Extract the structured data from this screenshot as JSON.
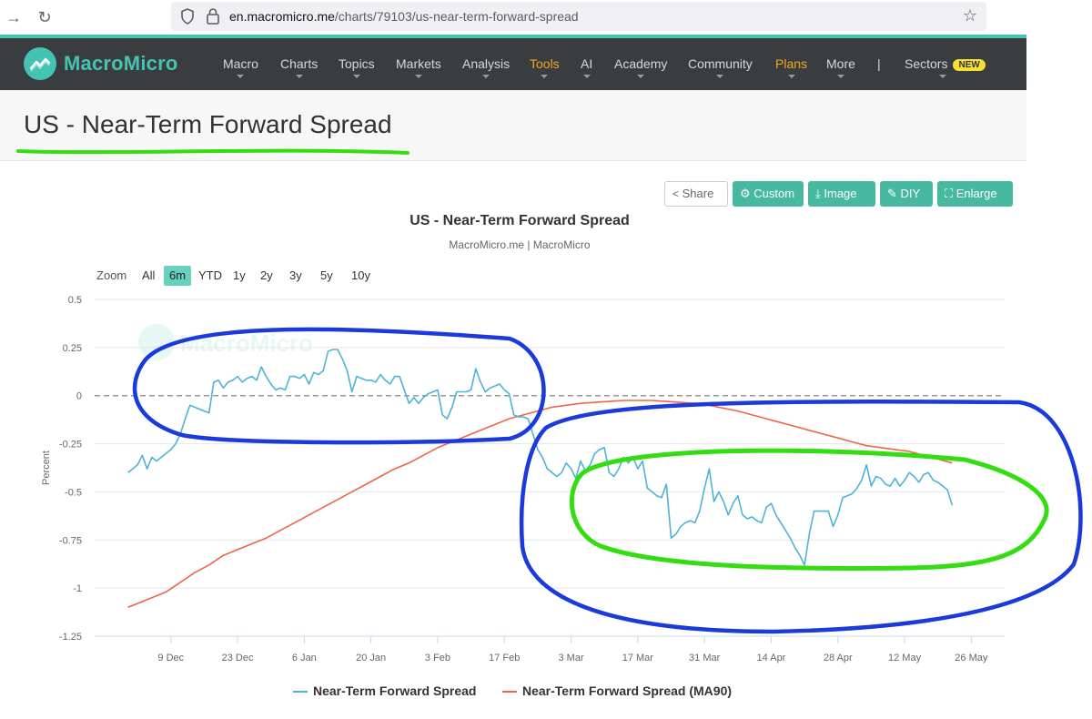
{
  "browser": {
    "url_host": "en.macromicro.me",
    "url_path": "/charts/79103/us-near-term-forward-spread"
  },
  "site": {
    "logo_text": "MacroMicro",
    "menu": [
      {
        "label": "Macro",
        "caret": true,
        "highlight": false
      },
      {
        "label": "Charts",
        "caret": true,
        "highlight": false
      },
      {
        "label": "Topics",
        "caret": true,
        "highlight": false
      },
      {
        "label": "Markets",
        "caret": true,
        "highlight": false
      },
      {
        "label": "Analysis",
        "caret": true,
        "highlight": false
      },
      {
        "label": "Tools",
        "caret": true,
        "highlight": true
      },
      {
        "label": "AI",
        "caret": true,
        "highlight": false
      },
      {
        "label": "Academy",
        "caret": true,
        "highlight": false
      },
      {
        "label": "Community",
        "caret": true,
        "highlight": false
      },
      {
        "label": "Plans",
        "caret": true,
        "highlight": true
      },
      {
        "label": "More",
        "caret": true,
        "highlight": false
      }
    ],
    "separator": "|",
    "sectors_label": "Sectors",
    "new_badge": "NEW",
    "accent_color": "#45c3b2",
    "highlight_color": "#f5a623"
  },
  "page": {
    "title": "US - Near-Term Forward Spread"
  },
  "toolbar": {
    "share": "Share",
    "custom": "Custom",
    "image": "Image",
    "diy": "DIY",
    "enlarge": "Enlarge"
  },
  "zoom": {
    "label": "Zoom",
    "options": [
      "All",
      "6m",
      "YTD",
      "1y",
      "2y",
      "3y",
      "5y",
      "10y"
    ],
    "active": "6m"
  },
  "chart_data": {
    "type": "line",
    "title": "US - Near-Term Forward Spread",
    "subtitle": "MacroMicro.me | MacroMicro",
    "watermark": "MacroMicro",
    "ylabel": "Percent",
    "ylim": [
      -1.25,
      0.5
    ],
    "yticks": [
      "0.5",
      "0.25",
      "0",
      "-0.25",
      "-0.5",
      "-0.75",
      "-1",
      "-1.25"
    ],
    "yticks_values": [
      0.5,
      0.25,
      0,
      -0.25,
      -0.5,
      -0.75,
      -1,
      -1.25
    ],
    "xlim": [
      0,
      180
    ],
    "xticks": [
      {
        "label": "9 Dec",
        "x": 7
      },
      {
        "label": "23 Dec",
        "x": 21
      },
      {
        "label": "6 Jan",
        "x": 35
      },
      {
        "label": "20 Jan",
        "x": 49
      },
      {
        "label": "3 Feb",
        "x": 63
      },
      {
        "label": "17 Feb",
        "x": 77
      },
      {
        "label": "3 Mar",
        "x": 91
      },
      {
        "label": "17 Mar",
        "x": 105
      },
      {
        "label": "31 Mar",
        "x": 119
      },
      {
        "label": "14 Apr",
        "x": 133
      },
      {
        "label": "28 Apr",
        "x": 147
      },
      {
        "label": "12 May",
        "x": 161
      },
      {
        "label": "26 May",
        "x": 175
      }
    ],
    "zero_line": true,
    "legend_position": "bottom",
    "series": [
      {
        "name": "Near-Term Forward Spread",
        "color": "#4db4d7",
        "points": [
          [
            -2,
            -0.4
          ],
          [
            -1,
            -0.38
          ],
          [
            0,
            -0.36
          ],
          [
            1,
            -0.31
          ],
          [
            2,
            -0.38
          ],
          [
            3,
            -0.32
          ],
          [
            4,
            -0.34
          ],
          [
            5,
            -0.32
          ],
          [
            6,
            -0.3
          ],
          [
            7,
            -0.28
          ],
          [
            8,
            -0.25
          ],
          [
            9,
            -0.2
          ],
          [
            10,
            -0.12
          ],
          [
            11,
            -0.05
          ],
          [
            12,
            -0.06
          ],
          [
            13,
            -0.07
          ],
          [
            14,
            -0.08
          ],
          [
            15,
            -0.09
          ],
          [
            16,
            0.07
          ],
          [
            17,
            0.08
          ],
          [
            18,
            0.04
          ],
          [
            19,
            0.07
          ],
          [
            20,
            0.08
          ],
          [
            21,
            0.1
          ],
          [
            22,
            0.07
          ],
          [
            23,
            0.09
          ],
          [
            24,
            0.1
          ],
          [
            25,
            0.08
          ],
          [
            26,
            0.15
          ],
          [
            27,
            0.1
          ],
          [
            28,
            0.06
          ],
          [
            29,
            0.03
          ],
          [
            30,
            0.04
          ],
          [
            31,
            0.03
          ],
          [
            32,
            0.1
          ],
          [
            33,
            0.1
          ],
          [
            34,
            0.09
          ],
          [
            35,
            0.11
          ],
          [
            36,
            0.06
          ],
          [
            37,
            0.12
          ],
          [
            38,
            0.11
          ],
          [
            39,
            0.13
          ],
          [
            40,
            0.23
          ],
          [
            41,
            0.24
          ],
          [
            42,
            0.24
          ],
          [
            43,
            0.19
          ],
          [
            44,
            0.13
          ],
          [
            45,
            0.02
          ],
          [
            46,
            0.1
          ],
          [
            47,
            0.09
          ],
          [
            48,
            0.08
          ],
          [
            49,
            0.08
          ],
          [
            50,
            0.07
          ],
          [
            51,
            0.11
          ],
          [
            52,
            0.08
          ],
          [
            53,
            0.06
          ],
          [
            54,
            0.1
          ],
          [
            55,
            0.1
          ],
          [
            56,
            0.03
          ],
          [
            57,
            -0.04
          ],
          [
            58,
            -0.01
          ],
          [
            59,
            -0.04
          ],
          [
            60,
            -0.01
          ],
          [
            61,
            0.01
          ],
          [
            62,
            0.02
          ],
          [
            63,
            0.03
          ],
          [
            64,
            -0.1
          ],
          [
            65,
            -0.12
          ],
          [
            66,
            -0.06
          ],
          [
            67,
            0.02
          ],
          [
            68,
            0.02
          ],
          [
            69,
            0.02
          ],
          [
            70,
            0.03
          ],
          [
            71,
            0.14
          ],
          [
            72,
            0.07
          ],
          [
            73,
            0.02
          ],
          [
            74,
            0.04
          ],
          [
            75,
            0.05
          ],
          [
            76,
            0.06
          ],
          [
            77,
            0.03
          ],
          [
            78,
            0.01
          ],
          [
            79,
            -0.1
          ],
          [
            80,
            -0.11
          ],
          [
            81,
            -0.11
          ],
          [
            82,
            -0.12
          ],
          [
            83,
            -0.2
          ],
          [
            84,
            -0.28
          ],
          [
            85,
            -0.32
          ],
          [
            86,
            -0.38
          ],
          [
            87,
            -0.4
          ],
          [
            88,
            -0.42
          ],
          [
            89,
            -0.4
          ],
          [
            90,
            -0.35
          ],
          [
            91,
            -0.38
          ],
          [
            92,
            -0.43
          ],
          [
            93,
            -0.34
          ],
          [
            94,
            -0.39
          ],
          [
            95,
            -0.36
          ],
          [
            96,
            -0.3
          ],
          [
            97,
            -0.28
          ],
          [
            98,
            -0.27
          ],
          [
            99,
            -0.4
          ],
          [
            100,
            -0.42
          ],
          [
            101,
            -0.38
          ],
          [
            102,
            -0.32
          ],
          [
            103,
            -0.35
          ],
          [
            104,
            -0.32
          ],
          [
            105,
            -0.38
          ],
          [
            106,
            -0.34
          ],
          [
            107,
            -0.48
          ],
          [
            108,
            -0.5
          ],
          [
            109,
            -0.52
          ],
          [
            110,
            -0.53
          ],
          [
            111,
            -0.46
          ],
          [
            112,
            -0.74
          ],
          [
            113,
            -0.72
          ],
          [
            114,
            -0.68
          ],
          [
            115,
            -0.66
          ],
          [
            116,
            -0.65
          ],
          [
            117,
            -0.66
          ],
          [
            118,
            -0.6
          ],
          [
            119,
            -0.48
          ],
          [
            120,
            -0.38
          ],
          [
            121,
            -0.55
          ],
          [
            122,
            -0.5
          ],
          [
            123,
            -0.55
          ],
          [
            124,
            -0.62
          ],
          [
            125,
            -0.56
          ],
          [
            126,
            -0.52
          ],
          [
            127,
            -0.62
          ],
          [
            128,
            -0.64
          ],
          [
            129,
            -0.63
          ],
          [
            130,
            -0.65
          ],
          [
            131,
            -0.66
          ],
          [
            132,
            -0.58
          ],
          [
            133,
            -0.56
          ],
          [
            134,
            -0.62
          ],
          [
            135,
            -0.66
          ],
          [
            136,
            -0.7
          ],
          [
            137,
            -0.74
          ],
          [
            138,
            -0.79
          ],
          [
            139,
            -0.83
          ],
          [
            140,
            -0.88
          ],
          [
            141,
            -0.72
          ],
          [
            142,
            -0.6
          ],
          [
            143,
            -0.6
          ],
          [
            144,
            -0.6
          ],
          [
            145,
            -0.6
          ],
          [
            146,
            -0.68
          ],
          [
            147,
            -0.62
          ],
          [
            148,
            -0.53
          ],
          [
            149,
            -0.52
          ],
          [
            150,
            -0.51
          ],
          [
            151,
            -0.48
          ],
          [
            152,
            -0.44
          ],
          [
            153,
            -0.36
          ],
          [
            154,
            -0.47
          ],
          [
            155,
            -0.42
          ],
          [
            156,
            -0.43
          ],
          [
            157,
            -0.46
          ],
          [
            158,
            -0.47
          ],
          [
            159,
            -0.43
          ],
          [
            160,
            -0.47
          ],
          [
            161,
            -0.44
          ],
          [
            162,
            -0.4
          ],
          [
            163,
            -0.42
          ],
          [
            164,
            -0.45
          ],
          [
            165,
            -0.41
          ],
          [
            166,
            -0.4
          ],
          [
            167,
            -0.44
          ],
          [
            168,
            -0.45
          ],
          [
            169,
            -0.47
          ],
          [
            170,
            -0.49
          ],
          [
            171,
            -0.57
          ]
        ]
      },
      {
        "name": "Near-Term Forward Spread (MA90)",
        "color": "#ef6549",
        "points": [
          [
            -2,
            -1.1
          ],
          [
            0,
            -1.08
          ],
          [
            3,
            -1.05
          ],
          [
            6,
            -1.02
          ],
          [
            9,
            -0.97
          ],
          [
            12,
            -0.92
          ],
          [
            15,
            -0.88
          ],
          [
            18,
            -0.83
          ],
          [
            21,
            -0.8
          ],
          [
            24,
            -0.77
          ],
          [
            27,
            -0.74
          ],
          [
            30,
            -0.7
          ],
          [
            33,
            -0.66
          ],
          [
            36,
            -0.62
          ],
          [
            39,
            -0.58
          ],
          [
            42,
            -0.54
          ],
          [
            45,
            -0.5
          ],
          [
            48,
            -0.46
          ],
          [
            51,
            -0.42
          ],
          [
            54,
            -0.38
          ],
          [
            57,
            -0.35
          ],
          [
            60,
            -0.31
          ],
          [
            63,
            -0.27
          ],
          [
            66,
            -0.24
          ],
          [
            69,
            -0.21
          ],
          [
            72,
            -0.18
          ],
          [
            75,
            -0.15
          ],
          [
            78,
            -0.12
          ],
          [
            81,
            -0.1
          ],
          [
            84,
            -0.08
          ],
          [
            87,
            -0.06
          ],
          [
            90,
            -0.05
          ],
          [
            93,
            -0.04
          ],
          [
            96,
            -0.035
          ],
          [
            99,
            -0.03
          ],
          [
            102,
            -0.025
          ],
          [
            105,
            -0.025
          ],
          [
            108,
            -0.025
          ],
          [
            111,
            -0.03
          ],
          [
            114,
            -0.035
          ],
          [
            117,
            -0.04
          ],
          [
            120,
            -0.05
          ],
          [
            123,
            -0.065
          ],
          [
            126,
            -0.08
          ],
          [
            129,
            -0.1
          ],
          [
            132,
            -0.12
          ],
          [
            135,
            -0.14
          ],
          [
            138,
            -0.16
          ],
          [
            141,
            -0.18
          ],
          [
            144,
            -0.2
          ],
          [
            147,
            -0.22
          ],
          [
            150,
            -0.24
          ],
          [
            153,
            -0.26
          ],
          [
            156,
            -0.27
          ],
          [
            159,
            -0.28
          ],
          [
            162,
            -0.29
          ],
          [
            165,
            -0.31
          ],
          [
            168,
            -0.33
          ],
          [
            171,
            -0.35
          ]
        ]
      }
    ]
  }
}
